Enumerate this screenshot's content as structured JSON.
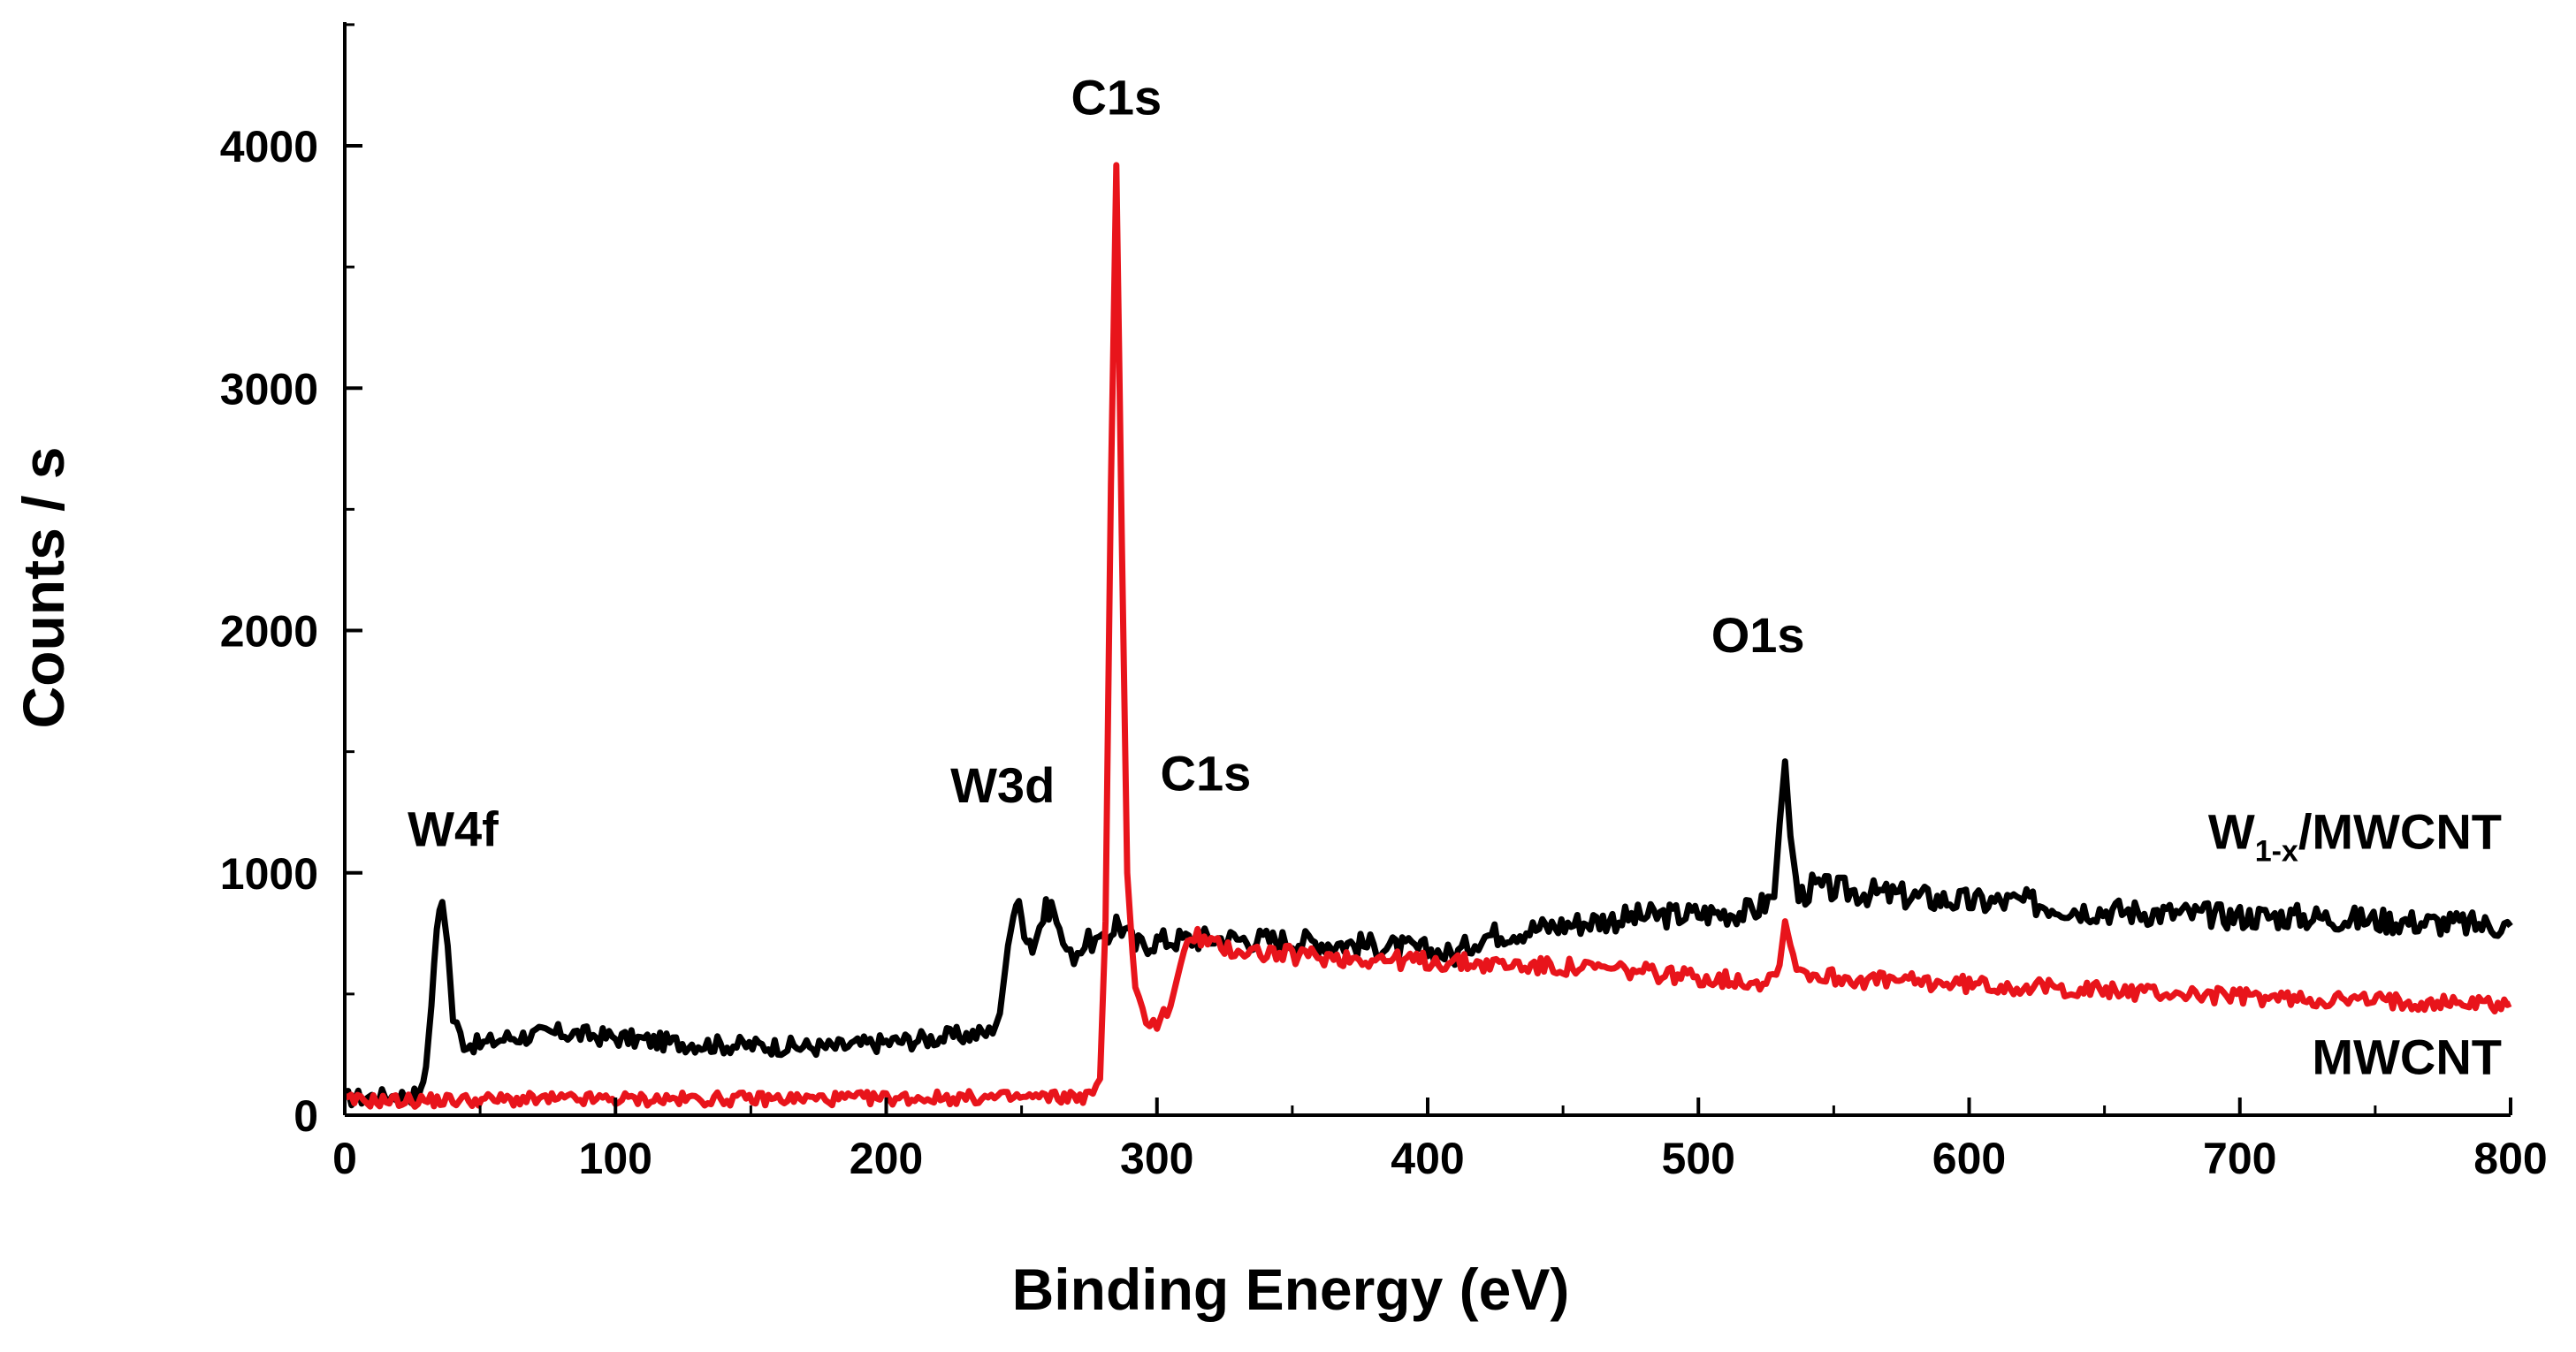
{
  "chart_data": {
    "type": "line",
    "title": "",
    "xlabel": "Binding Energy (eV)",
    "ylabel": "Counts / s",
    "xlim": [
      0,
      800
    ],
    "ylim": [
      0,
      4500
    ],
    "xticks": [
      0,
      100,
      200,
      300,
      400,
      500,
      600,
      700,
      800
    ],
    "yticks": [
      0,
      1000,
      2000,
      3000,
      4000
    ],
    "grid": false,
    "series": [
      {
        "name": "W1-x/MWCNT",
        "label_main": "W",
        "label_sub": "1-x",
        "label_rest": "/MWCNT",
        "color": "#000000",
        "points": [
          [
            0,
            70
          ],
          [
            10,
            75
          ],
          [
            20,
            80
          ],
          [
            28,
            85
          ],
          [
            30,
            200
          ],
          [
            32,
            450
          ],
          [
            34,
            800
          ],
          [
            36,
            880
          ],
          [
            38,
            700
          ],
          [
            40,
            400
          ],
          [
            44,
            300
          ],
          [
            50,
            290
          ],
          [
            60,
            320
          ],
          [
            80,
            340
          ],
          [
            100,
            320
          ],
          [
            120,
            300
          ],
          [
            140,
            290
          ],
          [
            160,
            285
          ],
          [
            180,
            280
          ],
          [
            200,
            300
          ],
          [
            220,
            320
          ],
          [
            238,
            340
          ],
          [
            242,
            420
          ],
          [
            245,
            700
          ],
          [
            248,
            880
          ],
          [
            251,
            780
          ],
          [
            254,
            700
          ],
          [
            258,
            820
          ],
          [
            261,
            880
          ],
          [
            264,
            750
          ],
          [
            268,
            650
          ],
          [
            272,
            700
          ],
          [
            276,
            720
          ],
          [
            280,
            700
          ],
          [
            283,
            760
          ],
          [
            285,
            800
          ],
          [
            288,
            760
          ],
          [
            292,
            700
          ],
          [
            300,
            720
          ],
          [
            320,
            730
          ],
          [
            350,
            720
          ],
          [
            380,
            700
          ],
          [
            400,
            680
          ],
          [
            410,
            660
          ],
          [
            420,
            740
          ],
          [
            440,
            770
          ],
          [
            460,
            800
          ],
          [
            480,
            820
          ],
          [
            500,
            830
          ],
          [
            520,
            840
          ],
          [
            528,
            900
          ],
          [
            530,
            1200
          ],
          [
            532,
            1460
          ],
          [
            534,
            1150
          ],
          [
            537,
            900
          ],
          [
            542,
            940
          ],
          [
            560,
            920
          ],
          [
            580,
            900
          ],
          [
            600,
            880
          ],
          [
            620,
            880
          ],
          [
            640,
            850
          ],
          [
            660,
            840
          ],
          [
            680,
            830
          ],
          [
            700,
            820
          ],
          [
            720,
            820
          ],
          [
            740,
            810
          ],
          [
            760,
            800
          ],
          [
            780,
            790
          ],
          [
            800,
            780
          ]
        ]
      },
      {
        "name": "MWCNT",
        "color": "#e8141b",
        "points": [
          [
            0,
            60
          ],
          [
            20,
            60
          ],
          [
            40,
            62
          ],
          [
            60,
            64
          ],
          [
            80,
            65
          ],
          [
            100,
            66
          ],
          [
            120,
            66
          ],
          [
            140,
            67
          ],
          [
            160,
            68
          ],
          [
            180,
            68
          ],
          [
            200,
            70
          ],
          [
            220,
            72
          ],
          [
            240,
            72
          ],
          [
            260,
            74
          ],
          [
            275,
            78
          ],
          [
            279,
            150
          ],
          [
            281,
            800
          ],
          [
            283,
            2600
          ],
          [
            285,
            3920
          ],
          [
            287,
            2400
          ],
          [
            289,
            1000
          ],
          [
            292,
            500
          ],
          [
            296,
            400
          ],
          [
            300,
            380
          ],
          [
            305,
            450
          ],
          [
            310,
            680
          ],
          [
            315,
            740
          ],
          [
            320,
            700
          ],
          [
            330,
            680
          ],
          [
            350,
            660
          ],
          [
            370,
            650
          ],
          [
            390,
            640
          ],
          [
            410,
            630
          ],
          [
            430,
            620
          ],
          [
            450,
            610
          ],
          [
            470,
            600
          ],
          [
            490,
            580
          ],
          [
            510,
            560
          ],
          [
            525,
            550
          ],
          [
            530,
            620
          ],
          [
            532,
            800
          ],
          [
            535,
            650
          ],
          [
            540,
            580
          ],
          [
            560,
            560
          ],
          [
            580,
            550
          ],
          [
            600,
            540
          ],
          [
            620,
            530
          ],
          [
            640,
            520
          ],
          [
            660,
            510
          ],
          [
            680,
            500
          ],
          [
            700,
            490
          ],
          [
            720,
            480
          ],
          [
            740,
            475
          ],
          [
            760,
            470
          ],
          [
            780,
            465
          ],
          [
            800,
            460
          ]
        ]
      }
    ],
    "annotations": [
      {
        "text": "C1s",
        "x": 285,
        "y": 4130
      },
      {
        "text": "W4f",
        "x": 40,
        "y": 1110
      },
      {
        "text": "W3d",
        "x": 243,
        "y": 1290
      },
      {
        "text": "C1s",
        "x": 318,
        "y": 1340
      },
      {
        "text": "O1s",
        "x": 522,
        "y": 1910
      }
    ],
    "series_labels": [
      {
        "series": 0,
        "x": 800,
        "y": 1100
      },
      {
        "series": 1,
        "x": 800,
        "y": 170
      }
    ]
  }
}
